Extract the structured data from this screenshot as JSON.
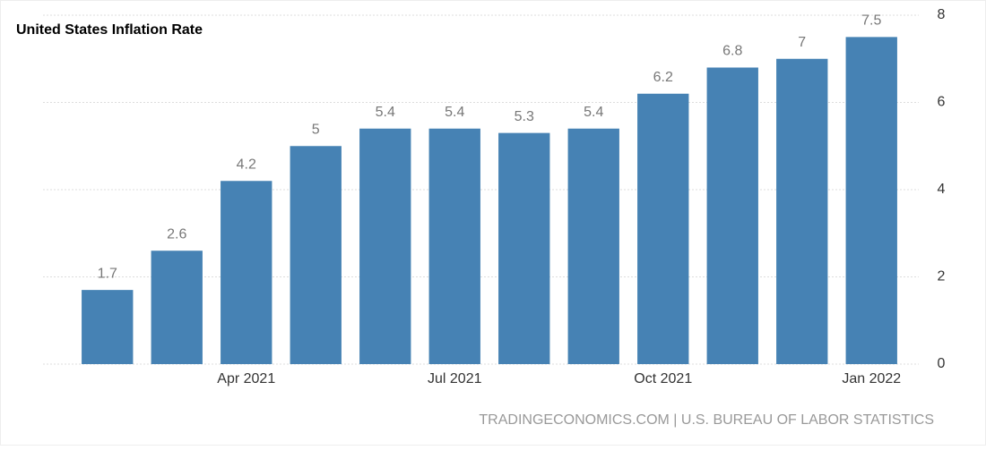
{
  "chart_data": {
    "type": "bar",
    "title": "United States Inflation Rate",
    "source": "TRADINGECONOMICS.COM | U.S. BUREAU OF LABOR STATISTICS",
    "categories": [
      null,
      null,
      "Apr 2021",
      null,
      null,
      "Jul 2021",
      null,
      null,
      "Oct 2021",
      null,
      null,
      "Jan 2022"
    ],
    "values": [
      1.7,
      2.6,
      4.2,
      5,
      5.4,
      5.4,
      5.3,
      5.4,
      6.2,
      6.8,
      7,
      7.5
    ],
    "color": "#4682b4",
    "ylim": [
      0,
      8
    ],
    "yticks": [
      0,
      2,
      4,
      6,
      8
    ],
    "grid": true
  }
}
